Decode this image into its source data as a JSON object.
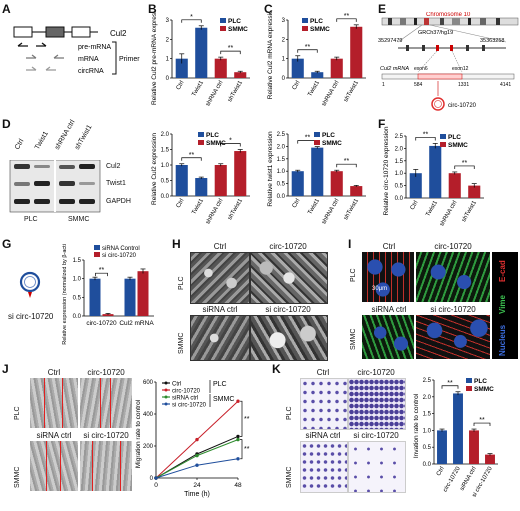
{
  "panels": {
    "A": {
      "letter": "A",
      "gene": "Cul2",
      "rows": [
        "pre-mRNA",
        "mRNA",
        "circRNA"
      ],
      "primer": "Primer"
    },
    "B": {
      "letter": "B"
    },
    "C": {
      "letter": "C"
    },
    "D": {
      "letter": "D",
      "lanes": [
        "Ctrl",
        "Twist1",
        "shRNA ctrl",
        "shTwist1"
      ],
      "bands": [
        "Cul2",
        "Twist1",
        "GAPDH"
      ],
      "groups": [
        "PLC",
        "SMMC"
      ]
    },
    "E": {
      "letter": "E",
      "chrom": "Chromosome 10",
      "build": "GRCh37/hg19",
      "start": "35297479",
      "end": "35363258",
      "mrna": "Cul2 mRNA",
      "exon6": "exon6",
      "exon12": "exon12",
      "n1": "1",
      "n584": "584",
      "n1331": "1331",
      "n4141": "4141",
      "circ": "circ-10720"
    },
    "F": {
      "letter": "F"
    },
    "G": {
      "letter": "G",
      "si": "si circ-10720"
    },
    "H": {
      "letter": "H",
      "cols1": [
        "Ctrl",
        "circ-10720"
      ],
      "cols2": [
        "siRNA ctrl",
        "si circ-10720"
      ],
      "rows": [
        "PLC",
        "SMMC"
      ]
    },
    "I": {
      "letter": "I",
      "cols1": [
        "Ctrl",
        "circ-10720"
      ],
      "cols2": [
        "siRNA ctrl",
        "si circ-10720"
      ],
      "rows": [
        "PLC",
        "SMMC"
      ],
      "scale": "30μm",
      "stains": [
        "E-cad",
        "Vime",
        "Nucleus"
      ]
    },
    "J": {
      "letter": "J",
      "cols1": [
        "Ctrl",
        "circ-10720"
      ],
      "cols2": [
        "siRNA ctrl",
        "si circ-10720"
      ],
      "rows": [
        "PLC",
        "SMMC"
      ]
    },
    "K": {
      "letter": "K",
      "cols1": [
        "Ctrl",
        "circ-10720"
      ],
      "cols2": [
        "siRNA ctrl",
        "si circ-10720"
      ],
      "rows": [
        "PLC",
        "SMMC"
      ]
    }
  },
  "colors": {
    "plc": "#1f4e9c",
    "smmc": "#b41e2a"
  },
  "chart_data": [
    {
      "id": "B",
      "type": "bar",
      "ylabel": "Relative Cul2 pre-mRNA expression",
      "categories": [
        "Ctrl",
        "Twist1",
        "shRNA ctrl",
        "shTwist1"
      ],
      "values": [
        1.0,
        2.6,
        1.0,
        0.3
      ],
      "errors": [
        0.25,
        0.1,
        0.08,
        0.05
      ],
      "cellline": [
        "PLC",
        "PLC",
        "SMMC",
        "SMMC"
      ],
      "ylim": [
        0,
        3
      ],
      "yticks": [
        "0",
        "1",
        "2",
        "3"
      ],
      "legend": [
        "PLC",
        "SMMC"
      ],
      "sig": [
        {
          "pair": [
            0,
            1
          ],
          "text": "*"
        },
        {
          "pair": [
            2,
            3
          ],
          "text": "**"
        }
      ]
    },
    {
      "id": "C",
      "type": "bar",
      "ylabel": "Relative Cul2 mRNA expression",
      "categories": [
        "Ctrl",
        "Twist1",
        "shRNA ctrl",
        "shTwist1"
      ],
      "values": [
        1.0,
        0.3,
        1.0,
        2.65
      ],
      "errors": [
        0.15,
        0.05,
        0.08,
        0.1
      ],
      "cellline": [
        "PLC",
        "PLC",
        "SMMC",
        "SMMC"
      ],
      "ylim": [
        0,
        3
      ],
      "yticks": [
        "0",
        "1",
        "2",
        "3"
      ],
      "legend": [
        "PLC",
        "SMMC"
      ],
      "sig": [
        {
          "pair": [
            0,
            1
          ],
          "text": "**"
        },
        {
          "pair": [
            2,
            3
          ],
          "text": "**"
        }
      ]
    },
    {
      "id": "D1",
      "type": "bar",
      "ylabel": "Relative Cul2 expression",
      "categories": [
        "Ctrl",
        "Twist1",
        "shRNA ctrl",
        "shTwist1"
      ],
      "values": [
        1.0,
        0.58,
        1.0,
        1.45
      ],
      "errors": [
        0.04,
        0.03,
        0.04,
        0.05
      ],
      "cellline": [
        "PLC",
        "PLC",
        "SMMC",
        "SMMC"
      ],
      "ylim": [
        0,
        2.0
      ],
      "yticks": [
        "0.0",
        "0.5",
        "1.0",
        "1.5",
        "2.0"
      ],
      "legend": [
        "PLC",
        "SMMC"
      ],
      "sig": [
        {
          "pair": [
            0,
            1
          ],
          "text": "**"
        },
        {
          "pair": [
            2,
            3
          ],
          "text": "*"
        }
      ]
    },
    {
      "id": "D2",
      "type": "bar",
      "ylabel": "Relative twist1 expression",
      "categories": [
        "Ctrl",
        "Twist1",
        "shRNA ctrl",
        "shTwist1"
      ],
      "values": [
        1.0,
        1.95,
        1.0,
        0.4
      ],
      "errors": [
        0.04,
        0.04,
        0.04,
        0.03
      ],
      "cellline": [
        "PLC",
        "PLC",
        "SMMC",
        "SMMC"
      ],
      "ylim": [
        0,
        2.5
      ],
      "yticks": [
        "0.0",
        "0.5",
        "1.0",
        "1.5",
        "2.0",
        "2.5"
      ],
      "legend": [
        "PLC",
        "SMMC"
      ],
      "sig": [
        {
          "pair": [
            0,
            1
          ],
          "text": "**"
        },
        {
          "pair": [
            2,
            3
          ],
          "text": "**"
        }
      ]
    },
    {
      "id": "F",
      "type": "bar",
      "ylabel": "Relative circ-10720 expression",
      "categories": [
        "Ctrl",
        "Twist1",
        "shRNA ctrl",
        "shTwist1"
      ],
      "values": [
        1.0,
        2.1,
        1.0,
        0.5
      ],
      "errors": [
        0.15,
        0.1,
        0.05,
        0.08
      ],
      "cellline": [
        "PLC",
        "PLC",
        "SMMC",
        "SMMC"
      ],
      "ylim": [
        0,
        2.5
      ],
      "yticks": [
        "0.0",
        "0.5",
        "1.0",
        "1.5",
        "2.0",
        "2.5"
      ],
      "legend": [
        "PLC",
        "SMMC"
      ],
      "sig": [
        {
          "pair": [
            0,
            1
          ],
          "text": "**"
        },
        {
          "pair": [
            2,
            3
          ],
          "text": "**"
        }
      ]
    },
    {
      "id": "G",
      "type": "bar",
      "ylabel": "Relative expression (normalized by β-actin)",
      "categories": [
        "circ-10720",
        "Cul2 mRNA"
      ],
      "series": [
        {
          "name": "siRNA Control",
          "values": [
            1.0,
            1.0
          ]
        },
        {
          "name": "si circ-10720",
          "values": [
            0.05,
            1.2
          ]
        }
      ],
      "errors": [
        [
          0.04,
          0.04
        ],
        [
          0.02,
          0.06
        ]
      ],
      "ylim": [
        0,
        1.5
      ],
      "yticks": [
        "0.0",
        "0.5",
        "1.0",
        "1.5"
      ],
      "sig": [
        {
          "cat": 0,
          "text": "**"
        }
      ]
    },
    {
      "id": "J",
      "type": "line",
      "ylabel": "Migration rate to control",
      "xlabel": "Time (h)",
      "x": [
        0,
        24,
        48
      ],
      "xticks": [
        "0",
        "24",
        "48"
      ],
      "ylim": [
        0,
        600
      ],
      "yticks": [
        "0",
        "200",
        "400",
        "600"
      ],
      "series": [
        {
          "name": "Ctrl",
          "values": [
            0,
            150,
            260
          ],
          "color": "#111111"
        },
        {
          "name": "circ-10720",
          "values": [
            0,
            240,
            480
          ],
          "color": "#c8202a"
        },
        {
          "name": "siRNA ctrl",
          "values": [
            0,
            140,
            240
          ],
          "color": "#2e8b2e"
        },
        {
          "name": "si circ-10720",
          "values": [
            0,
            80,
            120
          ],
          "color": "#1f4e9c"
        }
      ],
      "groups": [
        "PLC",
        "SMMC"
      ],
      "sig": [
        "**",
        "**"
      ]
    },
    {
      "id": "K",
      "type": "bar",
      "ylabel": "Invation rate to control",
      "categories": [
        "Ctrl",
        "circ-10720",
        "siRNA ctrl",
        "si circ-10720"
      ],
      "values": [
        1.0,
        2.1,
        1.0,
        0.28
      ],
      "errors": [
        0.04,
        0.05,
        0.04,
        0.03
      ],
      "cellline": [
        "PLC",
        "PLC",
        "SMMC",
        "SMMC"
      ],
      "ylim": [
        0,
        2.5
      ],
      "yticks": [
        "0.0",
        "0.5",
        "1.0",
        "1.5",
        "2.0",
        "2.5"
      ],
      "legend": [
        "PLC",
        "SMMC"
      ],
      "sig": [
        {
          "pair": [
            0,
            1
          ],
          "text": "**"
        },
        {
          "pair": [
            2,
            3
          ],
          "text": "**"
        }
      ]
    }
  ]
}
